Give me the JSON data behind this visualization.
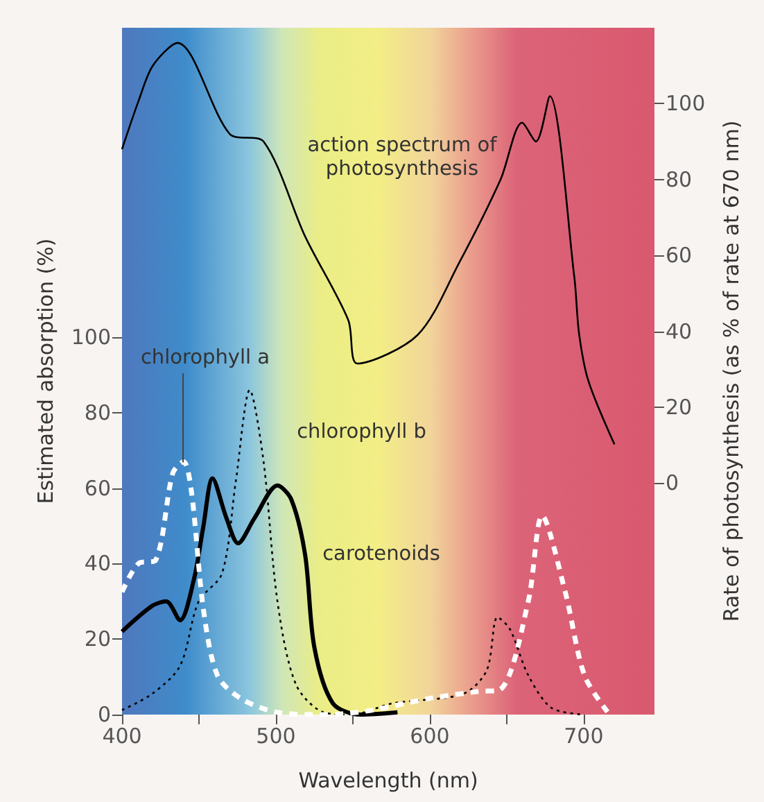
{
  "chart_data": {
    "type": "line",
    "xlabel": "Wavelength (nm)",
    "ylabel": "Estimated absorption (%)",
    "y2label": "Rate of photosynthesis (as % of rate at 670 nm)",
    "xlim": [
      400,
      746
    ],
    "xticks": [
      400,
      {
        "value": 450,
        "label": null
      },
      500,
      {
        "value": 550,
        "label": null
      },
      600,
      {
        "value": 650,
        "label": null
      },
      700
    ],
    "ylim": [
      0,
      182
    ],
    "yticks": [
      0,
      20,
      40,
      60,
      80,
      100
    ],
    "y2lim": [
      -61,
      120
    ],
    "y2ticks": [
      0,
      20,
      40,
      60,
      80,
      100
    ],
    "grid": false,
    "legend": false,
    "marker": "none",
    "series": [
      {
        "name": "chlorophyll a",
        "color": "#ffffff",
        "line_style": "dashed",
        "x": [
          400,
          410.6,
          422,
          433,
          440,
          445,
          453,
          462,
          477,
          501,
          531,
          560,
          600,
          631,
          646,
          664,
          673,
          688,
          700.5,
          715.5
        ],
        "values": [
          32.5,
          40,
          41,
          64,
          67,
          59.5,
          27.6,
          10.4,
          4.3,
          0.6,
          0,
          1,
          4.3,
          6.1,
          6.7,
          30,
          52.7,
          32.5,
          10.4,
          0.7
        ]
      },
      {
        "name": "chlorophyll b",
        "color": "#000000",
        "line_style": "dotted",
        "x": [
          400,
          419.6,
          437.7,
          449.8,
          465,
          474,
          483,
          492,
          501,
          513,
          531,
          549,
          576,
          621.7,
          637,
          644,
          652,
          664,
          679,
          700
        ],
        "values": [
          1.2,
          5.5,
          12.9,
          30,
          37.4,
          62,
          86,
          67,
          30,
          8,
          0.6,
          0,
          3,
          5.5,
          11.7,
          25.8,
          22.7,
          10.4,
          1.8,
          0
        ]
      },
      {
        "name": "carotenoids",
        "color": "#000000",
        "line_style": "solid",
        "x": [
          400,
          419.6,
          428.7,
          437.7,
          446.8,
          452.8,
          458.8,
          467.9,
          475.4,
          486,
          501,
          510,
          519,
          525,
          537,
          555,
          579
        ],
        "values": [
          22,
          28.8,
          30,
          25,
          36,
          49.7,
          62.6,
          52,
          45.4,
          52,
          60.7,
          57,
          42.3,
          17.8,
          3,
          0,
          0.6
        ]
      },
      {
        "name": "action spectrum of photosynthesis",
        "color": "#000000",
        "line_style": "solid",
        "axis": "y2",
        "x": [
          400,
          411,
          420,
          436,
          470,
          492,
          519,
          547,
          553,
          592,
          619,
          646,
          660,
          669,
          678,
          694,
          697,
          703,
          720
        ],
        "values": [
          88,
          101,
          110,
          116,
          92,
          90,
          65,
          43,
          31.5,
          39,
          58,
          80,
          95,
          90,
          102,
          54,
          39.4,
          27,
          10.2
        ]
      }
    ]
  }
}
